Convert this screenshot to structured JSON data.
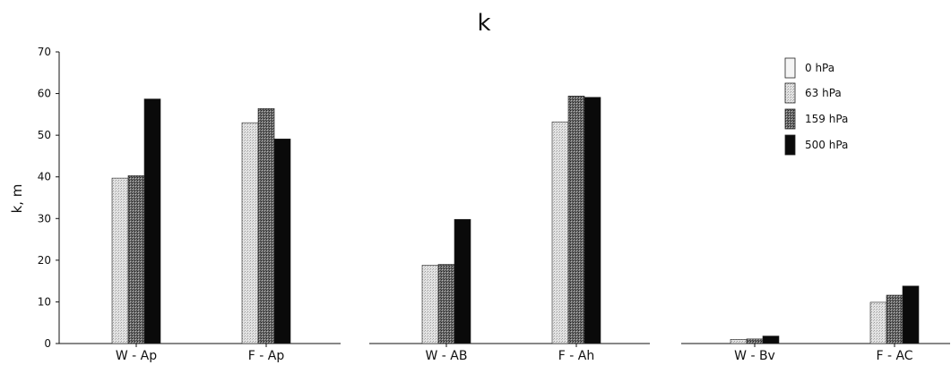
{
  "chart_data": {
    "type": "bar",
    "title": "k",
    "ylabel": "k, m",
    "xlabel": "",
    "ylim": [
      0,
      70
    ],
    "yticks": [
      0,
      10,
      20,
      30,
      40,
      50,
      60,
      70
    ],
    "grid": false,
    "legend_position": "top-right",
    "categories": [
      "W - Ap",
      "F - Ap",
      "W - AB",
      "F - Ah",
      "W - Bv",
      "F - AC"
    ],
    "series": [
      {
        "name": "0 hPa",
        "values": [
          null,
          null,
          null,
          null,
          null,
          null
        ]
      },
      {
        "name": "63 hPa",
        "values": [
          39.7,
          53.0,
          18.8,
          53.2,
          1.0,
          9.9
        ]
      },
      {
        "name": "159 hPa",
        "values": [
          40.3,
          56.4,
          19.0,
          59.4,
          1.1,
          11.6
        ]
      },
      {
        "name": "500 hPa",
        "values": [
          58.7,
          49.1,
          29.8,
          59.1,
          1.8,
          13.8
        ]
      }
    ]
  },
  "colors": {
    "s63": "#d9d9d9",
    "s159": "#8a8a8a",
    "s500": "#0a0a0a",
    "s0": "#f5f5f5"
  }
}
